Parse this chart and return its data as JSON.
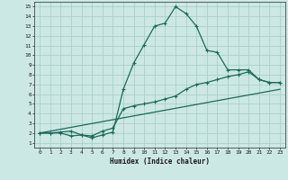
{
  "xlabel": "Humidex (Indice chaleur)",
  "bg_color": "#cce8e4",
  "grid_color": "#aacfca",
  "line_color": "#1a6b5a",
  "x_ticks": [
    0,
    1,
    2,
    3,
    4,
    5,
    6,
    7,
    8,
    9,
    10,
    11,
    12,
    13,
    14,
    15,
    16,
    17,
    18,
    19,
    20,
    21,
    22,
    23
  ],
  "y_ticks": [
    1,
    2,
    3,
    4,
    5,
    6,
    7,
    8,
    9,
    10,
    11,
    12,
    13,
    14,
    15
  ],
  "xlim": [
    -0.5,
    23.5
  ],
  "ylim": [
    0.5,
    15.5
  ],
  "curve1_x": [
    0,
    1,
    2,
    3,
    4,
    5,
    6,
    7,
    8,
    9,
    10,
    11,
    12,
    13,
    14,
    15,
    16,
    17,
    18,
    19,
    20,
    21,
    22,
    23
  ],
  "curve1_y": [
    2.0,
    2.0,
    2.0,
    1.7,
    1.8,
    1.5,
    1.8,
    2.1,
    6.5,
    9.2,
    11.1,
    13.0,
    13.3,
    15.0,
    14.3,
    13.0,
    10.5,
    10.3,
    8.5,
    8.5,
    8.5,
    7.5,
    7.2,
    7.2
  ],
  "curve2_x": [
    0,
    1,
    2,
    3,
    4,
    5,
    6,
    7,
    8,
    9,
    10,
    11,
    12,
    13,
    14,
    15,
    16,
    17,
    18,
    19,
    20,
    21,
    22,
    23
  ],
  "curve2_y": [
    2.0,
    2.0,
    2.1,
    2.2,
    1.8,
    1.7,
    2.2,
    2.5,
    4.5,
    4.8,
    5.0,
    5.2,
    5.5,
    5.8,
    6.5,
    7.0,
    7.2,
    7.5,
    7.8,
    8.0,
    8.3,
    7.5,
    7.2,
    7.2
  ],
  "curve3_x": [
    0,
    23
  ],
  "curve3_y": [
    2.0,
    6.5
  ]
}
